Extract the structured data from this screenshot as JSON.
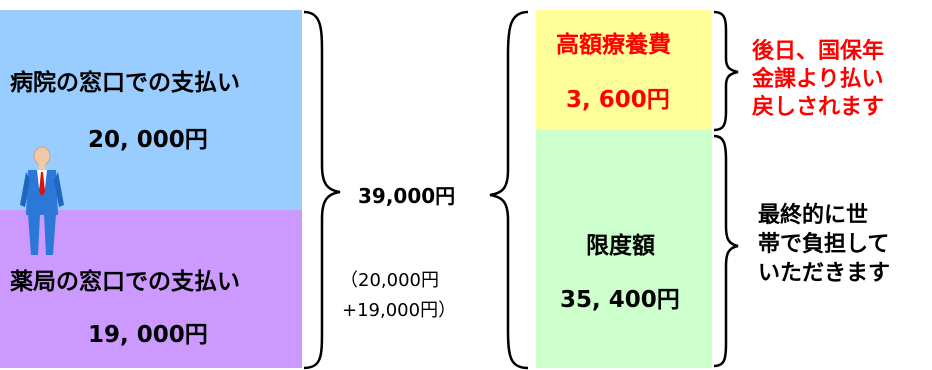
{
  "colors": {
    "hospital_bg": "#99ccff",
    "pharmacy_bg": "#cc99ff",
    "high_cost_bg": "#ffff99",
    "limit_bg": "#ccffcc",
    "accent_red": "#ff0000"
  },
  "hospital": {
    "label": "病院の窓口での支払い",
    "amount": "20, 000円"
  },
  "pharmacy": {
    "label": "薬局の窓口での支払い",
    "amount": "19, 000円"
  },
  "total": {
    "amount": "39,000円",
    "breakdown_line1": "（20,000円",
    "breakdown_line2": "+19,000円）"
  },
  "high_cost": {
    "label": "高額療養費",
    "amount": "3, 600円",
    "note_lines": [
      "後日、国保年",
      "金課より払い",
      "戻しされます"
    ]
  },
  "limit": {
    "label": "限度額",
    "amount": "35, 400円",
    "note_lines": [
      "最終的に世",
      "帯で負担して",
      "いただきます"
    ]
  },
  "icons": {
    "person": "businessman-figure-icon"
  }
}
